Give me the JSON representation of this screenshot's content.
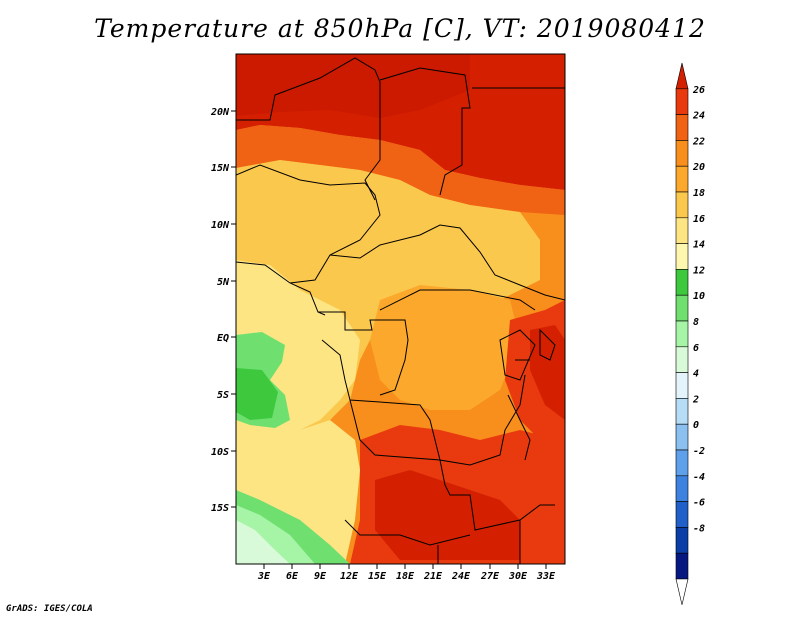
{
  "title": "Temperature at 850hPa [C], VT: 2019080412",
  "credit": "GrADS: IGES/COLA",
  "lat_ticks": [
    "20N",
    "15N",
    "10N",
    "5N",
    "EQ",
    "5S",
    "10S",
    "15S"
  ],
  "lon_ticks": [
    "3E",
    "6E",
    "9E",
    "12E",
    "15E",
    "18E",
    "21E",
    "24E",
    "27E",
    "30E",
    "33E"
  ],
  "colorbar": {
    "labels": [
      "26",
      "24",
      "22",
      "20",
      "18",
      "16",
      "14",
      "12",
      "10",
      "8",
      "6",
      "4",
      "2",
      "0",
      "-2",
      "-4",
      "-6",
      "-8"
    ],
    "colors": [
      "#d42000",
      "#e83a0e",
      "#f06214",
      "#f88e1c",
      "#fba82c",
      "#fbc84e",
      "#fde584",
      "#fff7b0",
      "#3ec83e",
      "#6fe06f",
      "#a6f4a6",
      "#d8fad8",
      "#e4f4fa",
      "#b6dcf6",
      "#8cc0f0",
      "#5ea0ea",
      "#3c82de",
      "#2060c8",
      "#0c3ea8",
      "#061880",
      "#ffffff"
    ]
  }
}
